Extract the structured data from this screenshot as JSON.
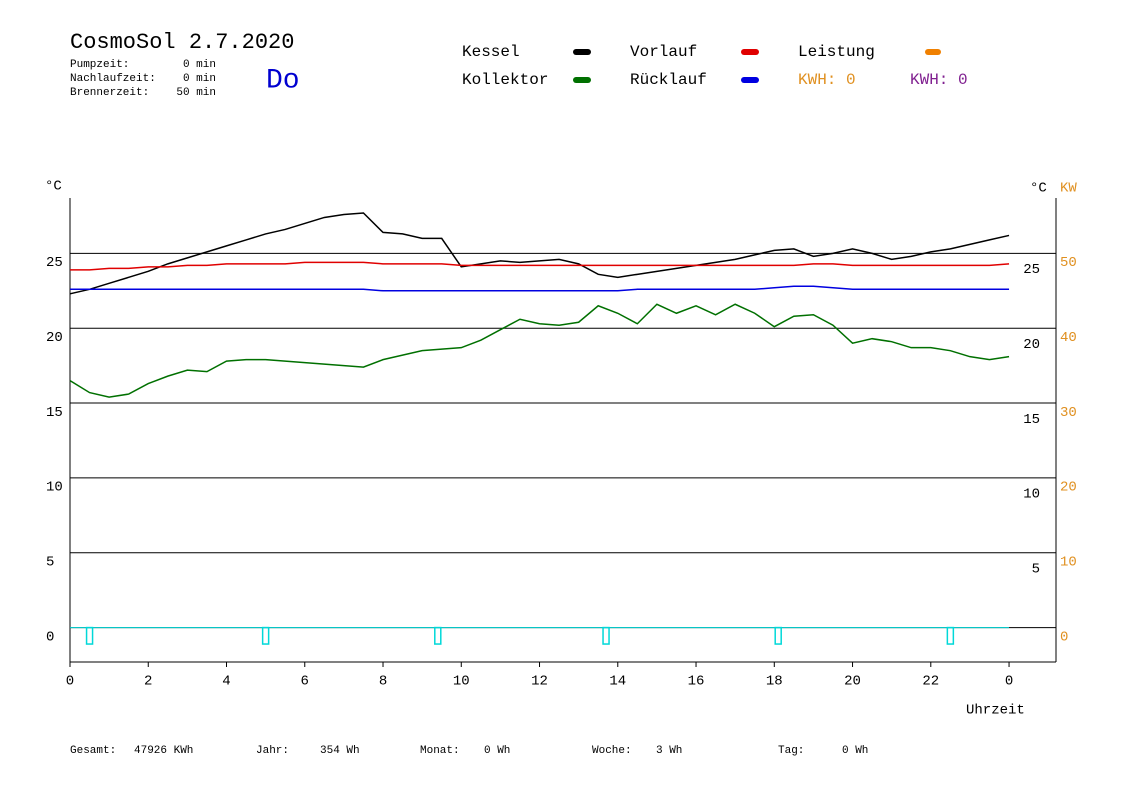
{
  "chart_data": {
    "type": "line",
    "title": "CosmoSol 2.7.2020",
    "day": "Do",
    "info": [
      {
        "label": "Pumpzeit:",
        "value": "0 min"
      },
      {
        "label": "Nachlaufzeit:",
        "value": "0 min"
      },
      {
        "label": "Brennerzeit:",
        "value": "50 min"
      }
    ],
    "x": [
      0,
      0.5,
      1,
      1.5,
      2,
      2.5,
      3,
      3.5,
      4,
      4.5,
      5,
      5.5,
      6,
      6.5,
      7,
      7.5,
      8,
      8.5,
      9,
      9.5,
      10,
      10.5,
      11,
      11.5,
      12,
      12.5,
      13,
      13.5,
      14,
      14.5,
      15,
      15.5,
      16,
      16.5,
      17,
      17.5,
      18,
      18.5,
      19,
      19.5,
      20,
      20.5,
      21,
      21.5,
      22,
      22.5,
      23,
      23.5,
      24
    ],
    "series": [
      {
        "name": "Kessel",
        "color": "#000000",
        "values": [
          22.3,
          22.6,
          23.0,
          23.4,
          23.8,
          24.3,
          24.7,
          25.1,
          25.5,
          25.9,
          26.3,
          26.6,
          27.0,
          27.4,
          27.6,
          27.7,
          26.4,
          26.3,
          26.0,
          26.0,
          24.1,
          24.3,
          24.5,
          24.4,
          24.5,
          24.6,
          24.3,
          23.6,
          23.4,
          23.6,
          23.8,
          24.0,
          24.2,
          24.4,
          24.6,
          24.9,
          25.2,
          25.3,
          24.8,
          25.0,
          25.3,
          25.0,
          24.6,
          24.8,
          25.1,
          25.3,
          25.6,
          25.9,
          26.2
        ]
      },
      {
        "name": "Kollektor",
        "color": "#007000",
        "values": [
          16.5,
          15.7,
          15.4,
          15.6,
          16.3,
          16.8,
          17.2,
          17.1,
          17.8,
          17.9,
          17.9,
          17.8,
          17.7,
          17.6,
          17.5,
          17.4,
          17.9,
          18.2,
          18.5,
          18.6,
          18.7,
          19.2,
          19.9,
          20.6,
          20.3,
          20.2,
          20.4,
          21.5,
          21.0,
          20.3,
          21.6,
          21.0,
          21.5,
          20.9,
          21.6,
          21.0,
          20.1,
          20.8,
          20.9,
          20.2,
          19.0,
          19.3,
          19.1,
          18.7,
          18.7,
          18.5,
          18.1,
          17.9,
          18.1
        ]
      },
      {
        "name": "Vorlauf",
        "color": "#e00000",
        "values": [
          23.9,
          23.9,
          24.0,
          24.0,
          24.1,
          24.1,
          24.2,
          24.2,
          24.3,
          24.3,
          24.3,
          24.3,
          24.4,
          24.4,
          24.4,
          24.4,
          24.3,
          24.3,
          24.3,
          24.3,
          24.2,
          24.2,
          24.2,
          24.2,
          24.2,
          24.2,
          24.2,
          24.2,
          24.2,
          24.2,
          24.2,
          24.2,
          24.2,
          24.2,
          24.2,
          24.2,
          24.2,
          24.2,
          24.3,
          24.3,
          24.2,
          24.2,
          24.2,
          24.2,
          24.2,
          24.2,
          24.2,
          24.2,
          24.3
        ]
      },
      {
        "name": "Rücklauf",
        "color": "#0000e0",
        "values": [
          22.6,
          22.6,
          22.6,
          22.6,
          22.6,
          22.6,
          22.6,
          22.6,
          22.6,
          22.6,
          22.6,
          22.6,
          22.6,
          22.6,
          22.6,
          22.6,
          22.5,
          22.5,
          22.5,
          22.5,
          22.5,
          22.5,
          22.5,
          22.5,
          22.5,
          22.5,
          22.5,
          22.5,
          22.5,
          22.6,
          22.6,
          22.6,
          22.6,
          22.6,
          22.6,
          22.6,
          22.7,
          22.8,
          22.8,
          22.7,
          22.6,
          22.6,
          22.6,
          22.6,
          22.6,
          22.6,
          22.6,
          22.6,
          22.6
        ]
      }
    ],
    "legend_extra": {
      "name": "Leistung",
      "color": "#f08000"
    },
    "kwh_labels": [
      {
        "text": "KWH: 0",
        "color": "#e09020"
      },
      {
        "text": "KWH: 0",
        "color": "#802090"
      }
    ],
    "pulses": {
      "color": "#00d8d8",
      "x": [
        0.5,
        5.0,
        9.4,
        13.7,
        18.1,
        22.5
      ],
      "depth": -1.1
    },
    "xlim": [
      0,
      25.2
    ],
    "xticks": [
      0,
      2,
      4,
      6,
      8,
      10,
      12,
      14,
      16,
      18,
      20,
      22,
      {
        "value": 24,
        "label": "0"
      }
    ],
    "xlabel": "Uhrzeit",
    "ylim": [
      -2.3,
      28.7
    ],
    "yticks": [
      0,
      5,
      10,
      15,
      20,
      25
    ],
    "y_right_ticks": [
      5,
      10,
      15,
      20,
      25
    ],
    "y2lim": [
      -4.6,
      57.4
    ],
    "y2ticks": [
      0,
      10,
      20,
      30,
      40,
      50
    ],
    "y2_color": "#e09020",
    "y_unit": "°C",
    "y_right_unit": "°C",
    "y2_unit": "KW",
    "grid": true,
    "footer": [
      {
        "label": "Gesamt:",
        "value": "47926 KWh"
      },
      {
        "label": "Jahr:",
        "value": "354 Wh"
      },
      {
        "label": "Monat:",
        "value": "0 Wh"
      },
      {
        "label": "Woche:",
        "value": "3 Wh"
      },
      {
        "label": "Tag:",
        "value": "0 Wh"
      }
    ]
  }
}
